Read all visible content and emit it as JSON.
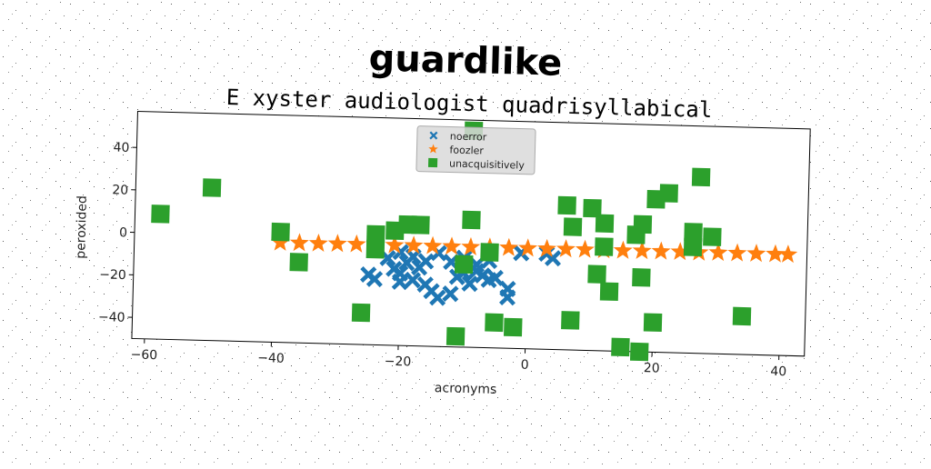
{
  "chart_data": {
    "type": "scatter",
    "suptitle": "guardlike",
    "title": "E xyster audiologist quadrisyllabical",
    "xlabel": "acronyms",
    "ylabel": "peroxided",
    "xlim": [
      -62,
      44
    ],
    "ylim": [
      -50,
      57
    ],
    "xticks": [
      -60,
      -40,
      -20,
      0,
      20,
      40
    ],
    "yticks": [
      -40,
      -20,
      0,
      20,
      40
    ],
    "grid": false,
    "legend_position": "top-center",
    "series": [
      {
        "name": "noerror",
        "marker": "x",
        "color": "#1f77b4",
        "points": [
          [
            -25,
            -17
          ],
          [
            -24,
            -19
          ],
          [
            -21,
            -14
          ],
          [
            -20,
            -16
          ],
          [
            -19,
            -11
          ],
          [
            -20,
            -20
          ],
          [
            -18,
            -19
          ],
          [
            -17,
            -13
          ],
          [
            -16,
            -21
          ],
          [
            -15,
            -24
          ],
          [
            -14,
            -27
          ],
          [
            -12,
            -25
          ],
          [
            -11,
            -17
          ],
          [
            -10,
            -15
          ],
          [
            -9,
            -20
          ],
          [
            -8,
            -14
          ],
          [
            -7,
            -16
          ],
          [
            -6,
            -18
          ],
          [
            -5,
            -17
          ],
          [
            -3,
            -26
          ],
          [
            -3,
            -22
          ],
          [
            -18,
            -8
          ],
          [
            -16,
            -10
          ],
          [
            -12,
            -10
          ],
          [
            -10,
            -8
          ],
          [
            -14,
            -6
          ],
          [
            -20,
            -6
          ],
          [
            -1,
            -5
          ],
          [
            3,
            -5
          ],
          [
            -6,
            -9
          ],
          [
            -8,
            -11
          ],
          [
            4,
            -7
          ],
          [
            -22,
            -9
          ]
        ]
      },
      {
        "name": "foozler",
        "marker": "*",
        "color": "#ff7f0e",
        "points": [
          [
            -39,
            -3.0
          ],
          [
            -36,
            -3.0
          ],
          [
            -33,
            -3.0
          ],
          [
            -30,
            -2.9
          ],
          [
            -27,
            -2.9
          ],
          [
            -24,
            -2.9
          ],
          [
            -21,
            -2.9
          ],
          [
            -18,
            -2.8
          ],
          [
            -15,
            -2.8
          ],
          [
            -12,
            -2.8
          ],
          [
            -9,
            -2.8
          ],
          [
            -6,
            -2.7
          ],
          [
            -3,
            -2.7
          ],
          [
            0,
            -2.7
          ],
          [
            3,
            -2.7
          ],
          [
            6,
            -2.6
          ],
          [
            9,
            -2.6
          ],
          [
            12,
            -2.6
          ],
          [
            15,
            -2.6
          ],
          [
            18,
            -2.5
          ],
          [
            21,
            -2.5
          ],
          [
            24,
            -2.5
          ],
          [
            27,
            -2.5
          ],
          [
            30,
            -2.4
          ],
          [
            33,
            -2.4
          ],
          [
            36,
            -2.4
          ],
          [
            39,
            -2.4
          ],
          [
            41,
            -2.4
          ]
        ]
      },
      {
        "name": "unacquisitively",
        "marker": "s",
        "color": "#2ca02c",
        "points": [
          [
            -58,
            9
          ],
          [
            -50,
            22
          ],
          [
            -39,
            2
          ],
          [
            -36,
            -12
          ],
          [
            -26,
            -35
          ],
          [
            -24,
            2
          ],
          [
            -24,
            -5
          ],
          [
            -21,
            4
          ],
          [
            -19,
            7
          ],
          [
            -17,
            7
          ],
          [
            -10,
            -11
          ],
          [
            -9,
            10
          ],
          [
            -9,
            52
          ],
          [
            -11,
            -45
          ],
          [
            -6,
            -5
          ],
          [
            -5,
            -38
          ],
          [
            -2,
            -40
          ],
          [
            6,
            18
          ],
          [
            7,
            8
          ],
          [
            7,
            -36
          ],
          [
            10,
            17
          ],
          [
            12,
            10
          ],
          [
            12,
            -1
          ],
          [
            11,
            -14
          ],
          [
            13,
            -22
          ],
          [
            15,
            -48
          ],
          [
            17,
            5
          ],
          [
            18,
            10
          ],
          [
            18,
            -15
          ],
          [
            18,
            -50
          ],
          [
            20,
            22
          ],
          [
            20,
            -36
          ],
          [
            22,
            25
          ],
          [
            26,
            7
          ],
          [
            26,
            0
          ],
          [
            27,
            33
          ],
          [
            29,
            5
          ],
          [
            34,
            -32
          ]
        ]
      }
    ]
  }
}
